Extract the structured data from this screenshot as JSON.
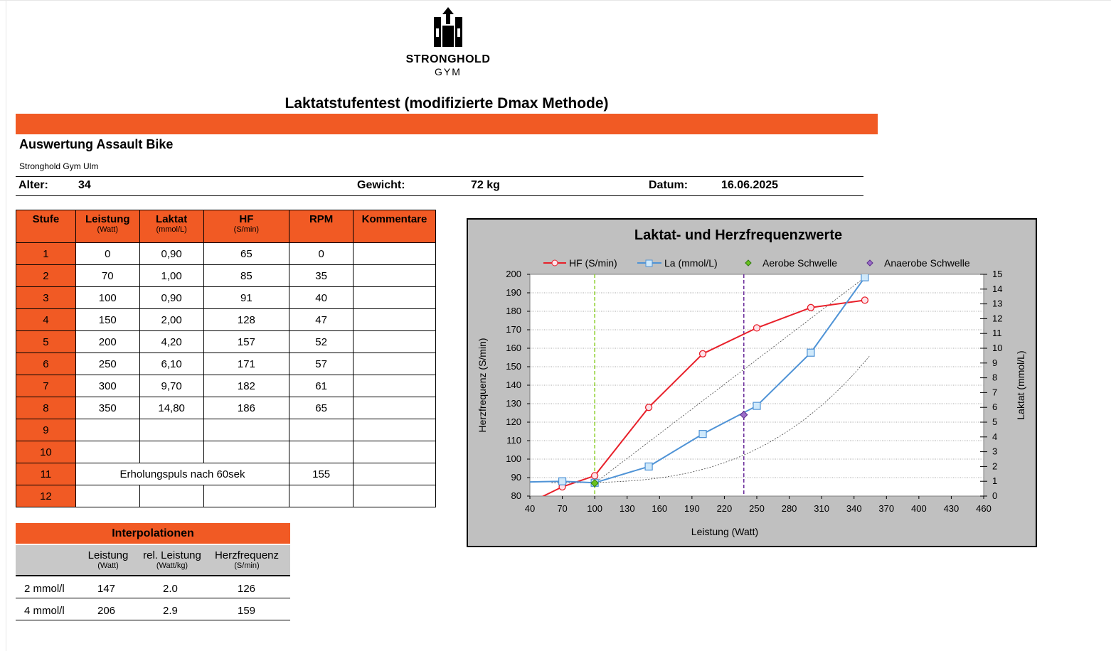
{
  "logo": {
    "brand": "STRONGHOLD",
    "sub": "GYM"
  },
  "title": "Laktatstufentest (modifizierte Dmax Methode)",
  "subtitle": "Auswertung Assault Bike",
  "gym": "Stronghold Gym Ulm",
  "info": {
    "alter_label": "Alter:",
    "alter": "34",
    "gewicht_label": "Gewicht:",
    "gewicht": "72 kg",
    "datum_label": "Datum:",
    "datum": "16.06.2025"
  },
  "table": {
    "headers": [
      {
        "label": "Stufe",
        "unit": ""
      },
      {
        "label": "Leistung",
        "unit": "(Watt)"
      },
      {
        "label": "Laktat",
        "unit": "(mmol/L)"
      },
      {
        "label": "HF",
        "unit": "(S/min)"
      },
      {
        "label": "RPM",
        "unit": ""
      },
      {
        "label": "Kommentare",
        "unit": ""
      }
    ],
    "rows": [
      {
        "stufe": "1",
        "leistung": "0",
        "laktat": "0,90",
        "hf": "65",
        "rpm": "0"
      },
      {
        "stufe": "2",
        "leistung": "70",
        "laktat": "1,00",
        "hf": "85",
        "rpm": "35"
      },
      {
        "stufe": "3",
        "leistung": "100",
        "laktat": "0,90",
        "hf": "91",
        "rpm": "40"
      },
      {
        "stufe": "4",
        "leistung": "150",
        "laktat": "2,00",
        "hf": "128",
        "rpm": "47"
      },
      {
        "stufe": "5",
        "leistung": "200",
        "laktat": "4,20",
        "hf": "157",
        "rpm": "52"
      },
      {
        "stufe": "6",
        "leistung": "250",
        "laktat": "6,10",
        "hf": "171",
        "rpm": "57"
      },
      {
        "stufe": "7",
        "leistung": "300",
        "laktat": "9,70",
        "hf": "182",
        "rpm": "61"
      },
      {
        "stufe": "8",
        "leistung": "350",
        "laktat": "14,80",
        "hf": "186",
        "rpm": "65"
      },
      {
        "stufe": "9",
        "leistung": "",
        "laktat": "",
        "hf": "",
        "rpm": ""
      },
      {
        "stufe": "10",
        "leistung": "",
        "laktat": "",
        "hf": "",
        "rpm": ""
      }
    ],
    "recovery": {
      "stufe": "11",
      "label": "Erholungspuls nach 60sek",
      "value": "155"
    },
    "last": {
      "stufe": "12"
    }
  },
  "interpolation": {
    "title": "Interpolationen",
    "cols": [
      {
        "label": "Leistung",
        "unit": "(Watt)"
      },
      {
        "label": "rel. Leistung",
        "unit": "(Watt/kg)"
      },
      {
        "label": "Herzfrequenz",
        "unit": "(S/min)"
      }
    ],
    "rows": [
      {
        "name": "2 mmol/l",
        "leistung": "147",
        "rel": "2.0",
        "hf": "126"
      },
      {
        "name": "4 mmol/l",
        "leistung": "206",
        "rel": "2.9",
        "hf": "159"
      }
    ]
  },
  "chart_data": {
    "type": "line",
    "title": "Laktat- und Herzfrequenzwerte",
    "xlabel": "Leistung (Watt)",
    "ylabel": "Herzfrequenz (S/min)",
    "y2label": "Laktat (mmol/L)",
    "xlim": [
      40,
      460
    ],
    "xticks": [
      40,
      70,
      100,
      130,
      160,
      190,
      220,
      250,
      280,
      310,
      340,
      370,
      400,
      430,
      460
    ],
    "ylim": [
      80,
      200
    ],
    "yticks": [
      80,
      90,
      100,
      110,
      120,
      130,
      140,
      150,
      160,
      170,
      180,
      190,
      200
    ],
    "y2lim": [
      0,
      15
    ],
    "y2ticks": [
      0,
      1,
      2,
      3,
      4,
      5,
      6,
      7,
      8,
      9,
      10,
      11,
      12,
      13,
      14,
      15
    ],
    "legend_position": "top",
    "grid": true,
    "series": [
      {
        "name": "HF (S/min)",
        "axis": "left",
        "color": "#e8202a",
        "x": [
          0,
          70,
          100,
          150,
          200,
          250,
          300,
          350
        ],
        "y": [
          65,
          85,
          91,
          128,
          157,
          171,
          182,
          186
        ]
      },
      {
        "name": "La (mmol/L)",
        "axis": "right",
        "color": "#4f93d6",
        "x": [
          0,
          70,
          100,
          150,
          200,
          250,
          300,
          350
        ],
        "y": [
          0.9,
          1.0,
          0.9,
          2.0,
          4.2,
          6.1,
          9.7,
          14.8
        ]
      },
      {
        "name": "Aerobe Schwelle",
        "axis": "left",
        "color": "#6ac21f",
        "x": [
          100
        ],
        "y": [
          87
        ]
      },
      {
        "name": "Anaerobe Schwelle",
        "axis": "right",
        "color": "#9b6fc8",
        "x": [
          238
        ],
        "y": [
          5.5
        ]
      }
    ],
    "threshold_lines": [
      {
        "name": "Aerobe Schwelle",
        "x": 100,
        "color": "#8ccf2a"
      },
      {
        "name": "Anaerobe Schwelle",
        "x": 238,
        "color": "#6a2c9a"
      }
    ]
  }
}
